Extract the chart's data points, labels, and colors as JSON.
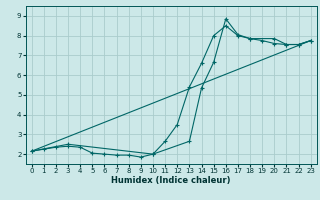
{
  "xlabel": "Humidex (Indice chaleur)",
  "xlim": [
    -0.5,
    23.5
  ],
  "ylim": [
    1.5,
    9.5
  ],
  "xticks": [
    0,
    1,
    2,
    3,
    4,
    5,
    6,
    7,
    8,
    9,
    10,
    11,
    12,
    13,
    14,
    15,
    16,
    17,
    18,
    19,
    20,
    21,
    22,
    23
  ],
  "yticks": [
    2,
    3,
    4,
    5,
    6,
    7,
    8,
    9
  ],
  "bg_color": "#cce8e8",
  "grid_color": "#aacccc",
  "line_color": "#006666",
  "lines": [
    {
      "x": [
        0,
        1,
        2,
        3,
        4,
        5,
        6,
        7,
        8,
        9,
        10,
        11,
        12,
        13,
        14,
        15,
        16,
        17,
        18,
        19,
        20,
        21,
        22,
        23
      ],
      "y": [
        2.15,
        2.25,
        2.35,
        2.4,
        2.35,
        2.05,
        2.0,
        1.95,
        1.95,
        1.85,
        2.0,
        2.65,
        3.5,
        5.4,
        6.6,
        8.0,
        8.5,
        8.0,
        7.85,
        7.75,
        7.6,
        7.55,
        7.55,
        7.75
      ],
      "has_markers": true
    },
    {
      "x": [
        0,
        3,
        10,
        13,
        14,
        15,
        16,
        17,
        18,
        20,
        21,
        22,
        23
      ],
      "y": [
        2.15,
        2.5,
        2.0,
        2.65,
        5.35,
        6.65,
        8.85,
        8.05,
        7.85,
        7.85,
        7.55,
        7.55,
        7.75
      ],
      "has_markers": true
    },
    {
      "x": [
        0,
        23
      ],
      "y": [
        2.15,
        7.75
      ],
      "has_markers": false
    }
  ]
}
